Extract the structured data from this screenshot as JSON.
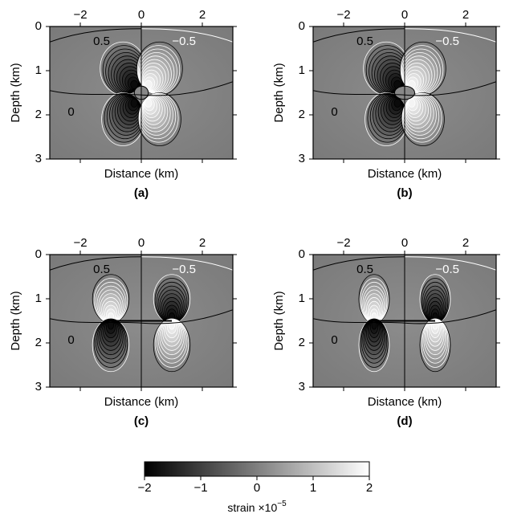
{
  "chart_data": [
    {
      "type": "contour",
      "panel_label": "(a)",
      "xlabel": "Distance (km)",
      "ylabel": "Depth (km)",
      "xlim": [
        -3,
        3
      ],
      "ylim": [
        3,
        0
      ],
      "xticks": [
        {
          "value": -2,
          "label": "−2"
        },
        0,
        2
      ],
      "yticks": [
        0,
        1,
        2,
        3
      ],
      "contour_labels": [
        "0.5",
        "−0.5",
        "0"
      ],
      "pattern": "quadrupole"
    },
    {
      "type": "contour",
      "panel_label": "(b)",
      "xlabel": "Distance (km)",
      "ylabel": "Depth (km)",
      "xlim": [
        -3,
        3
      ],
      "ylim": [
        3,
        0
      ],
      "xticks": [
        {
          "value": -2,
          "label": "−2"
        },
        0,
        2
      ],
      "yticks": [
        0,
        1,
        2,
        3
      ],
      "contour_labels": [
        "0.5",
        "−0.5",
        "0"
      ],
      "pattern": "quadrupole"
    },
    {
      "type": "contour",
      "panel_label": "(c)",
      "xlabel": "Distance (km)",
      "ylabel": "Depth (km)",
      "xlim": [
        -3,
        3
      ],
      "ylim": [
        3,
        0
      ],
      "xticks": [
        {
          "value": -2,
          "label": "−2"
        },
        0,
        2
      ],
      "yticks": [
        0,
        1,
        2,
        3
      ],
      "contour_labels": [
        "0.5",
        "−0.5",
        "0"
      ],
      "pattern": "dipole"
    },
    {
      "type": "contour",
      "panel_label": "(d)",
      "xlabel": "Distance (km)",
      "ylabel": "Depth (km)",
      "xlim": [
        -3,
        3
      ],
      "ylim": [
        3,
        0
      ],
      "xticks": [
        {
          "value": -2,
          "label": "−2"
        },
        0,
        2
      ],
      "yticks": [
        0,
        1,
        2,
        3
      ],
      "contour_labels": [
        "0.5",
        "−0.5",
        "0"
      ],
      "pattern": "dipole"
    },
    {
      "type": "colorbar",
      "clim": [
        -2,
        2
      ],
      "ticks": [
        {
          "value": -2,
          "label": "−2"
        },
        {
          "value": -1,
          "label": "−1"
        },
        0,
        1,
        2
      ],
      "label": "strain ×10",
      "label_exponent": "−5",
      "colors": [
        "#000000",
        "#ffffff"
      ]
    }
  ]
}
